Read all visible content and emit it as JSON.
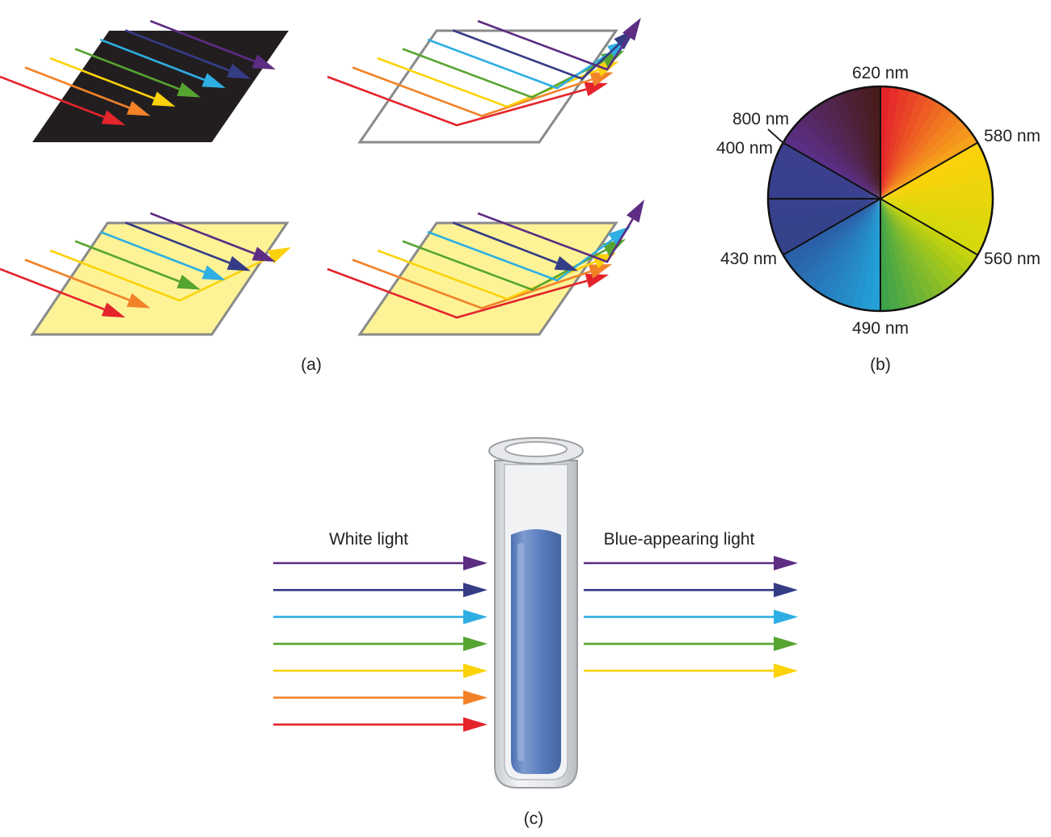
{
  "colors": {
    "violet": "#5c2d82",
    "indigo": "#353c86",
    "blue": "#2eaee2",
    "green": "#56a431",
    "yellow": "#fcd20a",
    "orange": "#f28228",
    "red": "#e4242b",
    "black_surface": "#221e20",
    "yellow_surface": "#fdf396",
    "outline": "#8a8a8a",
    "liquid": "#5b7ec0"
  },
  "panel_a": {
    "caption": "(a)",
    "surfaces": [
      {
        "name": "black-surface",
        "fill": "black",
        "reflects": []
      },
      {
        "name": "white-surface",
        "fill": "white",
        "reflects": [
          "violet",
          "indigo",
          "blue",
          "green",
          "yellow",
          "orange",
          "red"
        ]
      },
      {
        "name": "yellow-surface-absorbing",
        "fill": "yellow",
        "reflects": [
          "yellow"
        ]
      },
      {
        "name": "yellow-surface-reflecting",
        "fill": "yellow",
        "reflects": [
          "violet",
          "blue",
          "green",
          "yellow",
          "orange",
          "red"
        ]
      }
    ]
  },
  "panel_b": {
    "caption": "(b)",
    "wavelength_labels": [
      {
        "text": "620 nm",
        "angle_deg": 0
      },
      {
        "text": "580 nm",
        "angle_deg": 60
      },
      {
        "text": "560 nm",
        "angle_deg": 120
      },
      {
        "text": "490 nm",
        "angle_deg": 180
      },
      {
        "text": "430 nm",
        "angle_deg": 240
      },
      {
        "text": "400 nm",
        "angle_deg": 300
      },
      {
        "text": "800 nm",
        "angle_deg": 300
      }
    ],
    "segments": [
      {
        "from": "#e4242b",
        "to": "#f7a21b"
      },
      {
        "from": "#fcd20a",
        "to": "#d4d90c"
      },
      {
        "from": "#c5d30e",
        "to": "#3fa34a"
      },
      {
        "from": "#23a0d6",
        "to": "#2b5fa8"
      },
      {
        "from": "#35428c",
        "to": "#3a3f8e"
      },
      {
        "from": "#5a2f86",
        "to": "#4a1c1c"
      }
    ]
  },
  "panel_c": {
    "caption": "(c)",
    "left_label": "White light",
    "right_label": "Blue-appearing light",
    "incoming": [
      "violet",
      "indigo",
      "blue",
      "green",
      "yellow",
      "orange",
      "red"
    ],
    "outgoing": [
      "violet",
      "indigo",
      "blue",
      "green",
      "yellow"
    ]
  }
}
